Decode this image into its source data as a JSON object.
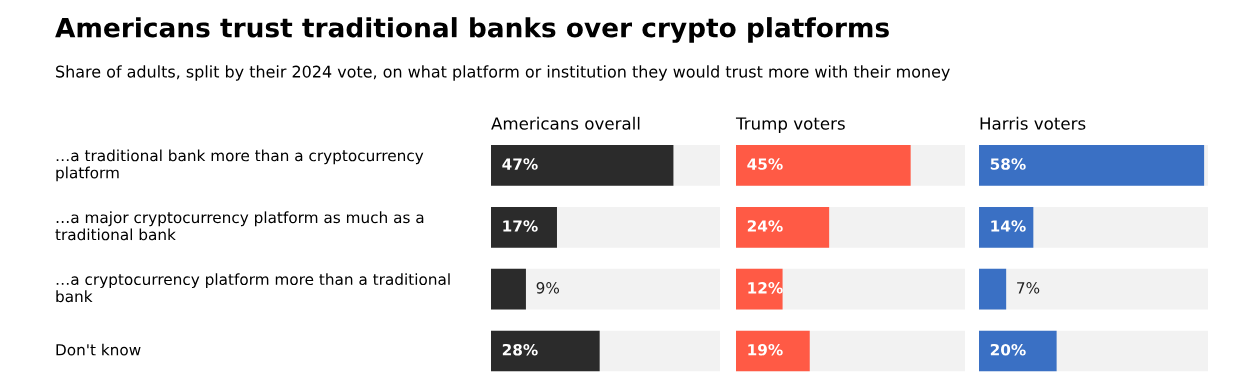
{
  "chart_data": [
    {
      "type": "bar",
      "orientation": "horizontal",
      "title": "Americans trust traditional banks over crypto platforms",
      "subtitle": "Share of adults, split by their 2024 vote, on what platform or institution they would trust more with their money",
      "categories": [
        "…a traditional bank more than a cryptocurrency platform",
        "…a major cryptocurrency platform as much as a traditional bank",
        "…a cryptocurrency platform more than a traditional bank",
        "Don't know"
      ],
      "xlim": [
        0,
        59
      ],
      "tick_labels": "y",
      "series": [
        {
          "name": "Americans overall",
          "color": "#2b2b2b",
          "values": [
            47,
            17,
            9,
            28
          ],
          "value_labels": [
            "47%",
            "17%",
            "9%",
            "28%"
          ]
        }
      ]
    },
    {
      "type": "bar",
      "orientation": "horizontal",
      "categories": [
        null,
        null,
        null,
        null
      ],
      "xlim": [
        0,
        59
      ],
      "tick_labels": false,
      "series": [
        {
          "name": "Trump voters",
          "color": "#ff5a45",
          "values": [
            45,
            24,
            12,
            19
          ],
          "value_labels": [
            "45%",
            "24%",
            "12%",
            "19%"
          ]
        }
      ]
    },
    {
      "type": "bar",
      "orientation": "horizontal",
      "categories": [
        null,
        null,
        null,
        null
      ],
      "xlim": [
        0,
        59
      ],
      "tick_labels": false,
      "series": [
        {
          "name": "Harris voters",
          "color": "#3a70c4",
          "values": [
            58,
            14,
            7,
            20
          ],
          "value_labels": [
            "58%",
            "14%",
            "7%",
            "20%"
          ]
        }
      ]
    }
  ]
}
